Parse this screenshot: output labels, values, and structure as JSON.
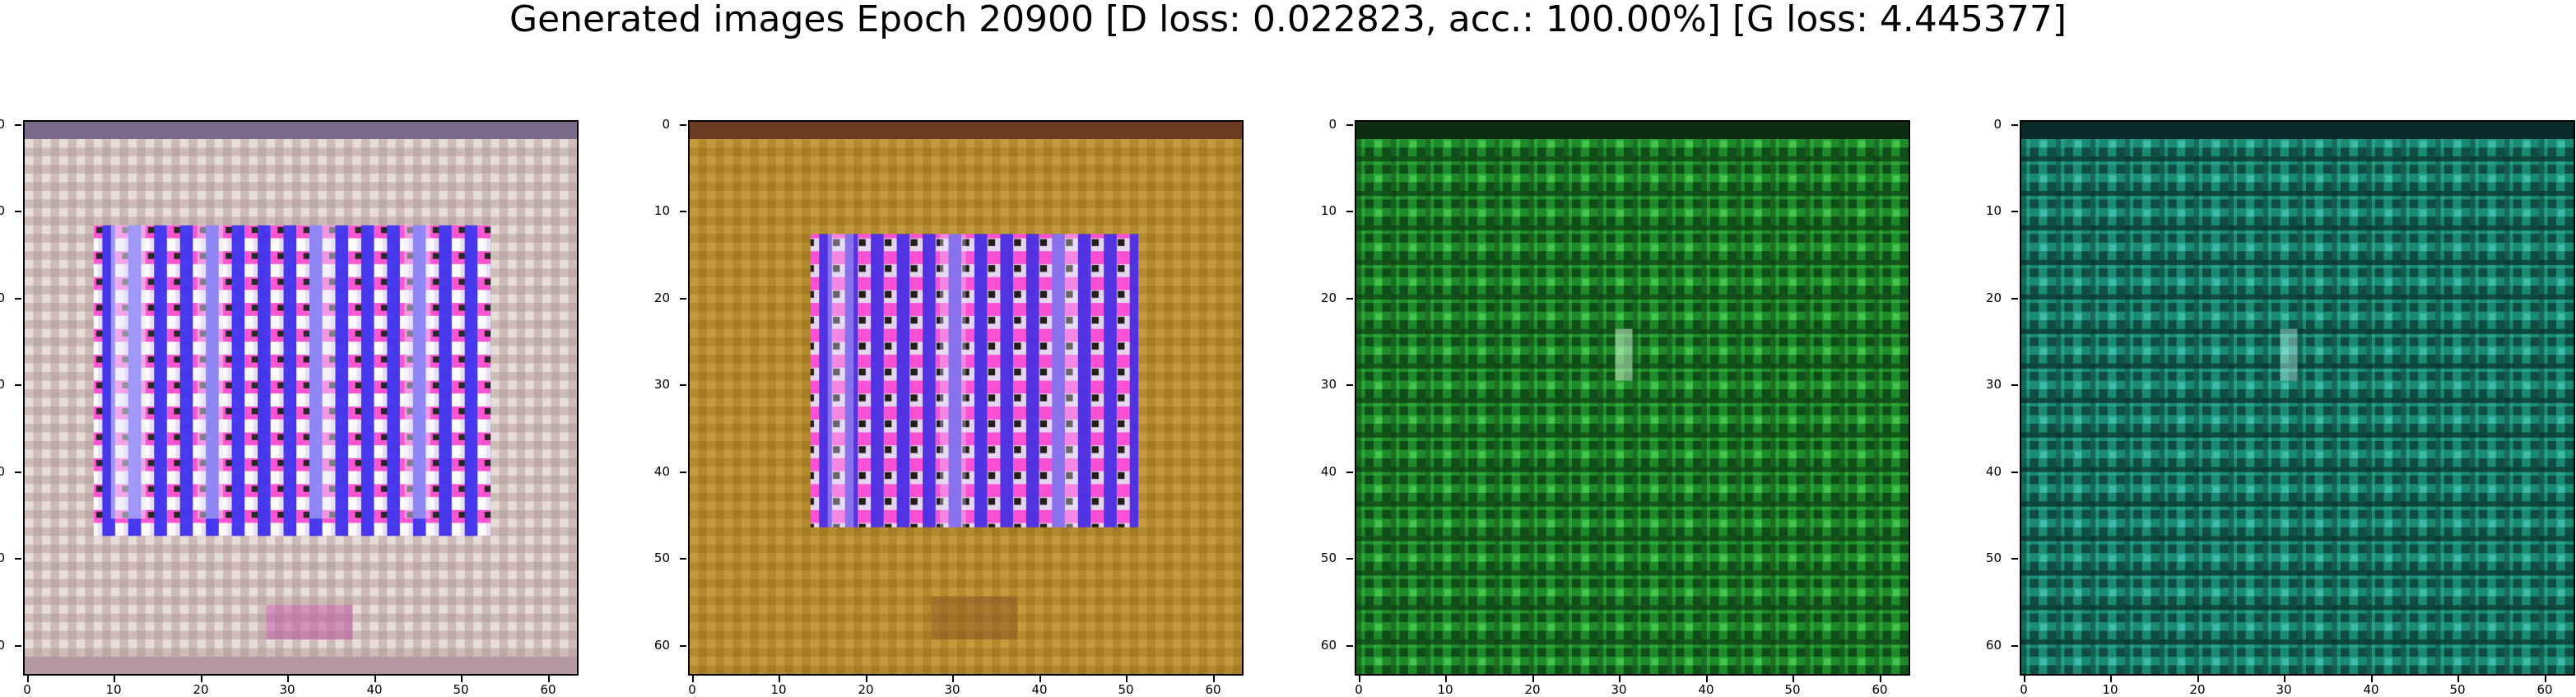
{
  "figure": {
    "title": "Generated images Epoch 20900 [D loss: 0.022823, acc.: 100.00%] [G loss: 4.445377]"
  },
  "axes": {
    "ticks": [
      "0",
      "10",
      "20",
      "30",
      "40",
      "50",
      "60"
    ]
  },
  "panels": [
    {
      "name": "generated-image-1",
      "palette": "pale-pink-white-with-blue-purple-columns",
      "bg": "#d9c6c0",
      "accent": "#5a3cf0"
    },
    {
      "name": "generated-image-2",
      "palette": "ochre-with-purple-blue-center",
      "bg": "#b98a2a",
      "accent": "#6a2cf0"
    },
    {
      "name": "generated-image-3",
      "palette": "green-grid-noise",
      "bg": "#1f8a2a",
      "accent": "#0e3d12"
    },
    {
      "name": "generated-image-4",
      "palette": "teal-grid-noise",
      "bg": "#1a8a72",
      "accent": "#0c3a34"
    }
  ]
}
